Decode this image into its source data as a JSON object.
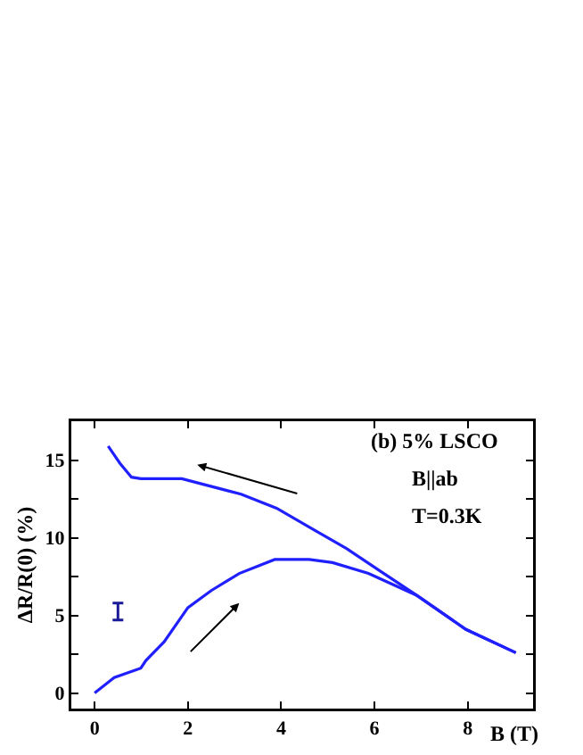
{
  "chart_data": {
    "type": "line",
    "xlabel": "B (T)",
    "ylabel": "ΔR/R(0) (%)",
    "annotations": [
      "(b) 5% LSCO",
      "B||ab",
      "T=0.3K"
    ],
    "series": [
      {
        "color": "#2020ff",
        "x": [
          0,
          0.42,
          0.99,
          1.1,
          1.49,
          2.0,
          2.5,
          3.1,
          3.86,
          4.6,
          5.1,
          5.87,
          6.9,
          7.96,
          9.03
        ],
        "values": [
          0,
          1.0,
          1.6,
          2.1,
          3.3,
          5.5,
          6.6,
          7.7,
          8.6,
          8.6,
          8.4,
          7.7,
          6.3,
          4.1,
          2.6
        ]
      },
      {
        "color": "#2020ff",
        "x": [
          9.03,
          7.96,
          6.9,
          6.15,
          5.4,
          4.65,
          3.9,
          3.14,
          2.25,
          1.87,
          0.99,
          0.79,
          0.54,
          0.29
        ],
        "values": [
          2.6,
          4.1,
          6.3,
          7.8,
          9.3,
          10.6,
          11.9,
          12.8,
          13.5,
          13.8,
          13.8,
          13.9,
          14.8,
          15.9
        ]
      },
      {
        "type": "scatter",
        "color": "#1a1a99",
        "x": [
          0.5
        ],
        "values": [
          5.2
        ],
        "errors": [
          [
            4.7,
            5.8
          ]
        ]
      }
    ],
    "xlim": [
      -0.5,
      9.4
    ],
    "ylim": [
      -1,
      17.5
    ],
    "xticks": [
      0,
      2,
      4,
      6,
      8
    ],
    "yticks": [
      0,
      {
        "value": 2.5,
        "label": null
      },
      5,
      {
        "value": 7.5,
        "label": null
      },
      10,
      {
        "value": 12.5,
        "label": null
      },
      15,
      {
        "value": 17.5,
        "label": null
      }
    ],
    "grid": false
  }
}
